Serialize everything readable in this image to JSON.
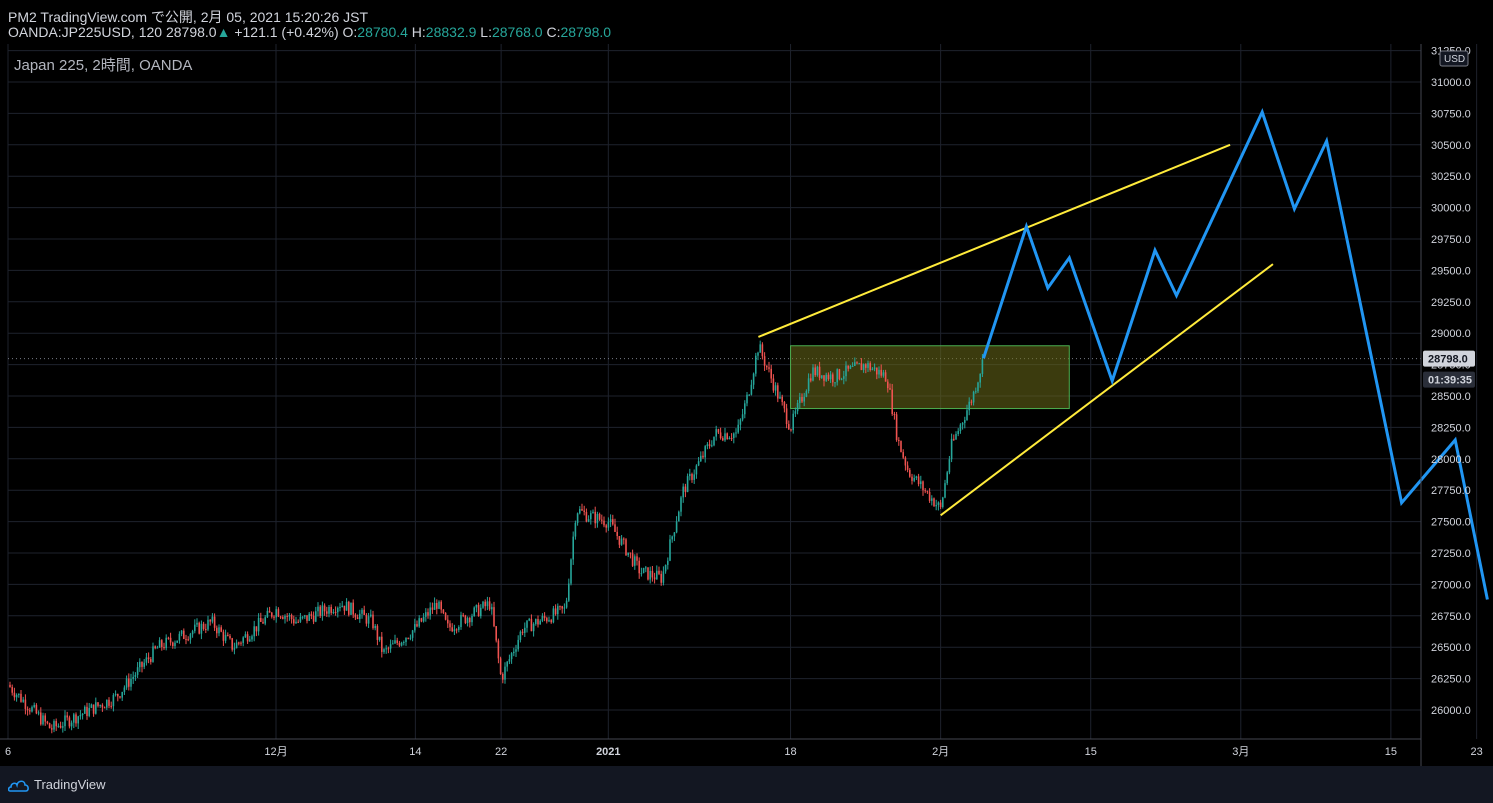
{
  "header": {
    "line1": "PM2 TradingView.com で公開, 2月 05, 2021 15:20:26 JST",
    "symbol_interval": "OANDA:JP225USD, 120 28798.0",
    "change": "+121.1 (+0.42%)",
    "o_label": "O:",
    "o_value": "28780.4",
    "h_label": "H:",
    "h_value": "28832.9",
    "l_label": "L:",
    "l_value": "28768.0",
    "c_label": "C:",
    "c_value": "28798.0"
  },
  "symbol_label": "Japan 225, 2時間, OANDA",
  "currency_badge": "USD",
  "last_price_tag": "28798.0",
  "countdown_tag": "01:39:35",
  "footer": {
    "brand": "TradingView"
  },
  "colors": {
    "background": "#000000",
    "grid": "#1e222d",
    "axis_text": "#d1d4dc",
    "candle_up": "#26a69a",
    "candle_down": "#ef5350",
    "trendline": "#ffeb3b",
    "projection": "#2196f3",
    "range_box_fill": "#6b6b1a",
    "range_box_border": "#4caf50"
  },
  "chart_data": {
    "type": "candlestick",
    "title": "Japan 225, 2時間, OANDA",
    "xlabel": "",
    "ylabel": "",
    "ylim": [
      25800,
      31250
    ],
    "grid": true,
    "y_ticks": [
      "31250.0",
      "31000.0",
      "30750.0",
      "30500.0",
      "30250.0",
      "30000.0",
      "29750.0",
      "29500.0",
      "29250.0",
      "29000.0",
      "28750.0",
      "28500.0",
      "28250.0",
      "28000.0",
      "27750.0",
      "27500.0",
      "27250.0",
      "27000.0",
      "26750.0",
      "26500.0",
      "26250.0",
      "26000.0"
    ],
    "y_tick_values": [
      31250,
      31000,
      30750,
      30500,
      30250,
      30000,
      29750,
      29500,
      29250,
      29000,
      28750,
      28500,
      28250,
      28000,
      27750,
      27500,
      27250,
      27000,
      26750,
      26500,
      26250,
      26000
    ],
    "x_ticks": [
      {
        "label": "6",
        "date": "2020-11-06"
      },
      {
        "label": "12月",
        "date": "2020-12-01"
      },
      {
        "label": "14",
        "date": "2020-12-14"
      },
      {
        "label": "22",
        "date": "2020-12-22"
      },
      {
        "label": "2021",
        "date": "2021-01-01"
      },
      {
        "label": "18",
        "date": "2021-01-18"
      },
      {
        "label": "2月",
        "date": "2021-02-01"
      },
      {
        "label": "15",
        "date": "2021-02-15"
      },
      {
        "label": "3月",
        "date": "2021-03-01"
      },
      {
        "label": "15",
        "date": "2021-03-15"
      },
      {
        "label": "23",
        "date": "2021-03-23"
      }
    ],
    "price_path": [
      {
        "date": "2020-11-06",
        "price": 26200
      },
      {
        "date": "2020-11-10",
        "price": 25850
      },
      {
        "date": "2020-11-16",
        "price": 26100
      },
      {
        "date": "2020-11-20",
        "price": 26500
      },
      {
        "date": "2020-11-25",
        "price": 26700
      },
      {
        "date": "2020-11-27",
        "price": 26500
      },
      {
        "date": "2020-12-01",
        "price": 26800
      },
      {
        "date": "2020-12-03",
        "price": 26700
      },
      {
        "date": "2020-12-07",
        "price": 26850
      },
      {
        "date": "2020-12-10",
        "price": 26700
      },
      {
        "date": "2020-12-11",
        "price": 26450
      },
      {
        "date": "2020-12-14",
        "price": 26650
      },
      {
        "date": "2020-12-16",
        "price": 26850
      },
      {
        "date": "2020-12-17",
        "price": 26650
      },
      {
        "date": "2020-12-21",
        "price": 26850
      },
      {
        "date": "2020-12-22",
        "price": 26250
      },
      {
        "date": "2020-12-24",
        "price": 26650
      },
      {
        "date": "2020-12-28",
        "price": 26800
      },
      {
        "date": "2020-12-29",
        "price": 27600
      },
      {
        "date": "2020-12-30",
        "price": 27550
      },
      {
        "date": "2021-01-01",
        "price": 27500
      },
      {
        "date": "2021-01-04",
        "price": 27100
      },
      {
        "date": "2021-01-06",
        "price": 27050
      },
      {
        "date": "2021-01-08",
        "price": 27750
      },
      {
        "date": "2021-01-11",
        "price": 28200
      },
      {
        "date": "2021-01-13",
        "price": 28200
      },
      {
        "date": "2021-01-14",
        "price": 28500
      },
      {
        "date": "2021-01-15",
        "price": 28900
      },
      {
        "date": "2021-01-18",
        "price": 28250
      },
      {
        "date": "2021-01-20",
        "price": 28700
      },
      {
        "date": "2021-01-22",
        "price": 28650
      },
      {
        "date": "2021-01-25",
        "price": 28750
      },
      {
        "date": "2021-01-27",
        "price": 28650
      },
      {
        "date": "2021-01-28",
        "price": 28150
      },
      {
        "date": "2021-01-29",
        "price": 27900
      },
      {
        "date": "2021-02-01",
        "price": 27600
      },
      {
        "date": "2021-02-02",
        "price": 28100
      },
      {
        "date": "2021-02-04",
        "price": 28500
      },
      {
        "date": "2021-02-05",
        "price": 28798
      }
    ],
    "trendlines": [
      {
        "name": "upper",
        "x1": "2021-01-15",
        "y1": 28970,
        "x2": "2021-02-28",
        "y2": 30500
      },
      {
        "name": "lower",
        "x1": "2021-02-01",
        "y1": 27550,
        "x2": "2021-03-04",
        "y2": 29550
      }
    ],
    "range_box": {
      "x1": "2021-01-18",
      "x2": "2021-02-13",
      "y_low": 28400,
      "y_high": 28900
    },
    "projection": [
      {
        "date": "2021-02-05",
        "price": 28800
      },
      {
        "date": "2021-02-09",
        "price": 29850
      },
      {
        "date": "2021-02-11",
        "price": 29360
      },
      {
        "date": "2021-02-13",
        "price": 29600
      },
      {
        "date": "2021-02-17",
        "price": 28620
      },
      {
        "date": "2021-02-21",
        "price": 29660
      },
      {
        "date": "2021-02-23",
        "price": 29300
      },
      {
        "date": "2021-03-03",
        "price": 30760
      },
      {
        "date": "2021-03-06",
        "price": 29990
      },
      {
        "date": "2021-03-09",
        "price": 30530
      },
      {
        "date": "2021-03-16",
        "price": 27650
      },
      {
        "date": "2021-03-21",
        "price": 28150
      },
      {
        "date": "2021-03-24",
        "price": 26880
      }
    ],
    "last_price": 28798.0
  }
}
